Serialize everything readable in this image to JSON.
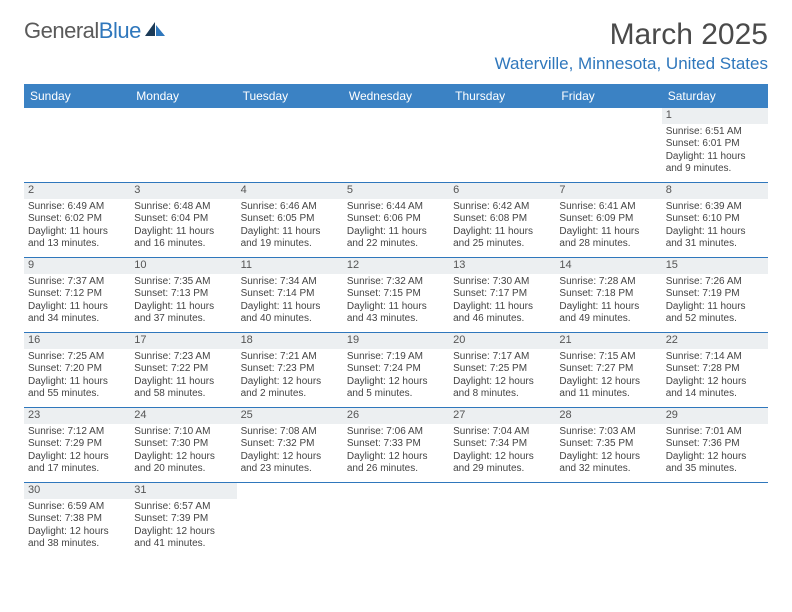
{
  "brand": {
    "general": "General",
    "blue": "Blue"
  },
  "title": "March 2025",
  "location": "Waterville, Minnesota, United States",
  "colors": {
    "header_bg": "#3b82c4",
    "accent": "#2f77bc",
    "daynum_bg": "#eceff1",
    "text": "#444444",
    "title_text": "#4a4a4a",
    "page_bg": "#ffffff"
  },
  "typography": {
    "title_fontsize": 30,
    "location_fontsize": 17,
    "dayhead_fontsize": 12,
    "cell_fontsize": 10,
    "daynum_fontsize": 11
  },
  "day_headers": [
    "Sunday",
    "Monday",
    "Tuesday",
    "Wednesday",
    "Thursday",
    "Friday",
    "Saturday"
  ],
  "weeks": [
    [
      {
        "n": "",
        "sr": "",
        "ss": "",
        "dl": ""
      },
      {
        "n": "",
        "sr": "",
        "ss": "",
        "dl": ""
      },
      {
        "n": "",
        "sr": "",
        "ss": "",
        "dl": ""
      },
      {
        "n": "",
        "sr": "",
        "ss": "",
        "dl": ""
      },
      {
        "n": "",
        "sr": "",
        "ss": "",
        "dl": ""
      },
      {
        "n": "",
        "sr": "",
        "ss": "",
        "dl": ""
      },
      {
        "n": "1",
        "sr": "Sunrise: 6:51 AM",
        "ss": "Sunset: 6:01 PM",
        "dl": "Daylight: 11 hours and 9 minutes."
      }
    ],
    [
      {
        "n": "2",
        "sr": "Sunrise: 6:49 AM",
        "ss": "Sunset: 6:02 PM",
        "dl": "Daylight: 11 hours and 13 minutes."
      },
      {
        "n": "3",
        "sr": "Sunrise: 6:48 AM",
        "ss": "Sunset: 6:04 PM",
        "dl": "Daylight: 11 hours and 16 minutes."
      },
      {
        "n": "4",
        "sr": "Sunrise: 6:46 AM",
        "ss": "Sunset: 6:05 PM",
        "dl": "Daylight: 11 hours and 19 minutes."
      },
      {
        "n": "5",
        "sr": "Sunrise: 6:44 AM",
        "ss": "Sunset: 6:06 PM",
        "dl": "Daylight: 11 hours and 22 minutes."
      },
      {
        "n": "6",
        "sr": "Sunrise: 6:42 AM",
        "ss": "Sunset: 6:08 PM",
        "dl": "Daylight: 11 hours and 25 minutes."
      },
      {
        "n": "7",
        "sr": "Sunrise: 6:41 AM",
        "ss": "Sunset: 6:09 PM",
        "dl": "Daylight: 11 hours and 28 minutes."
      },
      {
        "n": "8",
        "sr": "Sunrise: 6:39 AM",
        "ss": "Sunset: 6:10 PM",
        "dl": "Daylight: 11 hours and 31 minutes."
      }
    ],
    [
      {
        "n": "9",
        "sr": "Sunrise: 7:37 AM",
        "ss": "Sunset: 7:12 PM",
        "dl": "Daylight: 11 hours and 34 minutes."
      },
      {
        "n": "10",
        "sr": "Sunrise: 7:35 AM",
        "ss": "Sunset: 7:13 PM",
        "dl": "Daylight: 11 hours and 37 minutes."
      },
      {
        "n": "11",
        "sr": "Sunrise: 7:34 AM",
        "ss": "Sunset: 7:14 PM",
        "dl": "Daylight: 11 hours and 40 minutes."
      },
      {
        "n": "12",
        "sr": "Sunrise: 7:32 AM",
        "ss": "Sunset: 7:15 PM",
        "dl": "Daylight: 11 hours and 43 minutes."
      },
      {
        "n": "13",
        "sr": "Sunrise: 7:30 AM",
        "ss": "Sunset: 7:17 PM",
        "dl": "Daylight: 11 hours and 46 minutes."
      },
      {
        "n": "14",
        "sr": "Sunrise: 7:28 AM",
        "ss": "Sunset: 7:18 PM",
        "dl": "Daylight: 11 hours and 49 minutes."
      },
      {
        "n": "15",
        "sr": "Sunrise: 7:26 AM",
        "ss": "Sunset: 7:19 PM",
        "dl": "Daylight: 11 hours and 52 minutes."
      }
    ],
    [
      {
        "n": "16",
        "sr": "Sunrise: 7:25 AM",
        "ss": "Sunset: 7:20 PM",
        "dl": "Daylight: 11 hours and 55 minutes."
      },
      {
        "n": "17",
        "sr": "Sunrise: 7:23 AM",
        "ss": "Sunset: 7:22 PM",
        "dl": "Daylight: 11 hours and 58 minutes."
      },
      {
        "n": "18",
        "sr": "Sunrise: 7:21 AM",
        "ss": "Sunset: 7:23 PM",
        "dl": "Daylight: 12 hours and 2 minutes."
      },
      {
        "n": "19",
        "sr": "Sunrise: 7:19 AM",
        "ss": "Sunset: 7:24 PM",
        "dl": "Daylight: 12 hours and 5 minutes."
      },
      {
        "n": "20",
        "sr": "Sunrise: 7:17 AM",
        "ss": "Sunset: 7:25 PM",
        "dl": "Daylight: 12 hours and 8 minutes."
      },
      {
        "n": "21",
        "sr": "Sunrise: 7:15 AM",
        "ss": "Sunset: 7:27 PM",
        "dl": "Daylight: 12 hours and 11 minutes."
      },
      {
        "n": "22",
        "sr": "Sunrise: 7:14 AM",
        "ss": "Sunset: 7:28 PM",
        "dl": "Daylight: 12 hours and 14 minutes."
      }
    ],
    [
      {
        "n": "23",
        "sr": "Sunrise: 7:12 AM",
        "ss": "Sunset: 7:29 PM",
        "dl": "Daylight: 12 hours and 17 minutes."
      },
      {
        "n": "24",
        "sr": "Sunrise: 7:10 AM",
        "ss": "Sunset: 7:30 PM",
        "dl": "Daylight: 12 hours and 20 minutes."
      },
      {
        "n": "25",
        "sr": "Sunrise: 7:08 AM",
        "ss": "Sunset: 7:32 PM",
        "dl": "Daylight: 12 hours and 23 minutes."
      },
      {
        "n": "26",
        "sr": "Sunrise: 7:06 AM",
        "ss": "Sunset: 7:33 PM",
        "dl": "Daylight: 12 hours and 26 minutes."
      },
      {
        "n": "27",
        "sr": "Sunrise: 7:04 AM",
        "ss": "Sunset: 7:34 PM",
        "dl": "Daylight: 12 hours and 29 minutes."
      },
      {
        "n": "28",
        "sr": "Sunrise: 7:03 AM",
        "ss": "Sunset: 7:35 PM",
        "dl": "Daylight: 12 hours and 32 minutes."
      },
      {
        "n": "29",
        "sr": "Sunrise: 7:01 AM",
        "ss": "Sunset: 7:36 PM",
        "dl": "Daylight: 12 hours and 35 minutes."
      }
    ],
    [
      {
        "n": "30",
        "sr": "Sunrise: 6:59 AM",
        "ss": "Sunset: 7:38 PM",
        "dl": "Daylight: 12 hours and 38 minutes."
      },
      {
        "n": "31",
        "sr": "Sunrise: 6:57 AM",
        "ss": "Sunset: 7:39 PM",
        "dl": "Daylight: 12 hours and 41 minutes."
      },
      {
        "n": "",
        "sr": "",
        "ss": "",
        "dl": ""
      },
      {
        "n": "",
        "sr": "",
        "ss": "",
        "dl": ""
      },
      {
        "n": "",
        "sr": "",
        "ss": "",
        "dl": ""
      },
      {
        "n": "",
        "sr": "",
        "ss": "",
        "dl": ""
      },
      {
        "n": "",
        "sr": "",
        "ss": "",
        "dl": ""
      }
    ]
  ]
}
